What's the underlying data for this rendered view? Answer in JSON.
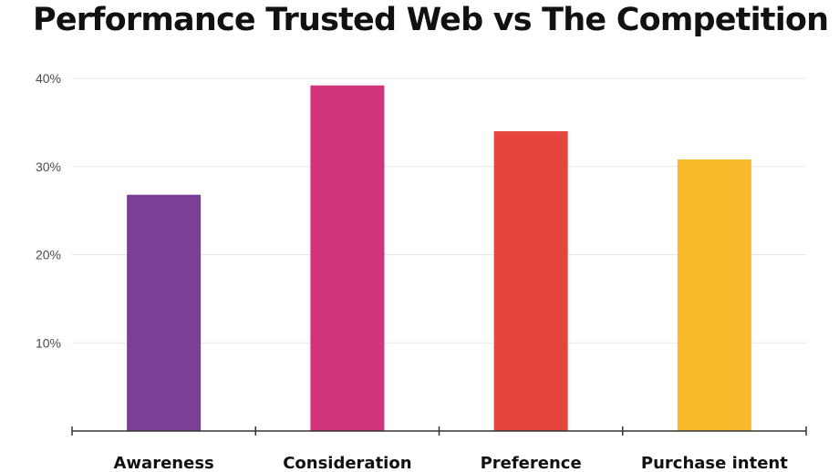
{
  "chart_data": {
    "type": "bar",
    "title": "Performance Trusted Web vs The Competition",
    "xlabel": "",
    "ylabel": "",
    "categories": [
      "Awareness",
      "Consideration",
      "Preference",
      "Purchase intent"
    ],
    "values": [
      26.8,
      39.2,
      34.0,
      30.8
    ],
    "colors": [
      "#7b3f98",
      "#d0347a",
      "#e4453c",
      "#f8b92a"
    ],
    "ylim": [
      0,
      40
    ],
    "yticks": [
      {
        "value": 10,
        "label": "10%"
      },
      {
        "value": 20,
        "label": "20%"
      },
      {
        "value": 30,
        "label": "30%"
      },
      {
        "value": 40,
        "label": "40%"
      }
    ],
    "grid": true,
    "legend": "none"
  }
}
